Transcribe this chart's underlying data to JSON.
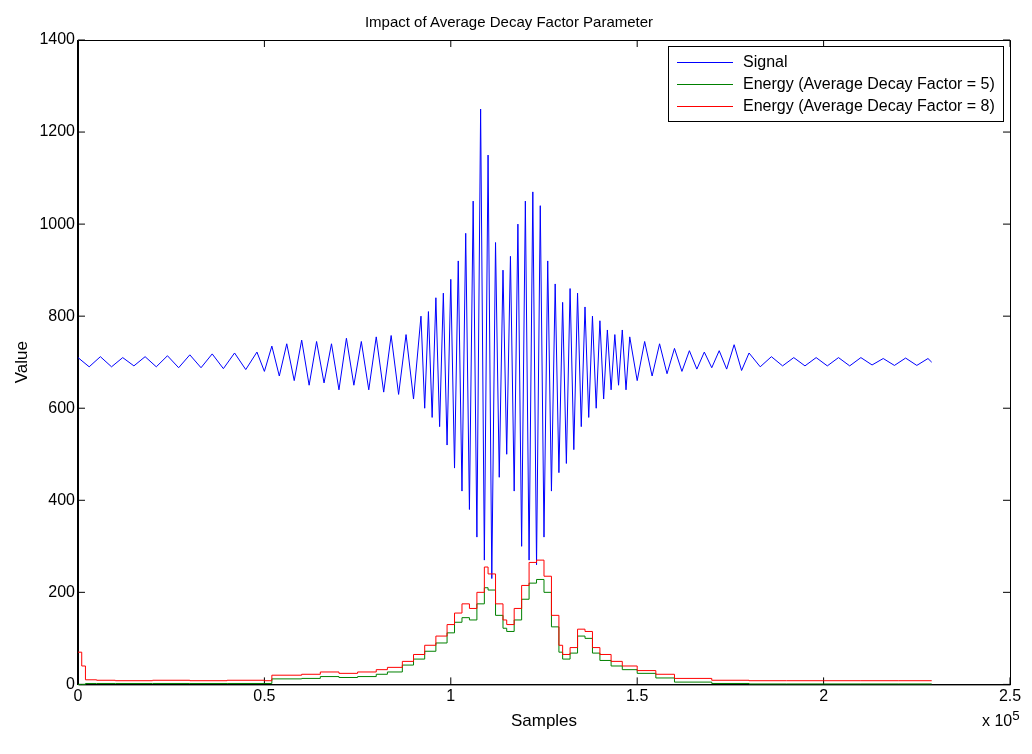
{
  "chart_data": {
    "type": "line",
    "title": "Impact of Average Decay Factor Parameter",
    "xlabel": "Samples",
    "ylabel": "Value",
    "annotations": [
      "x 10$^{5}$"
    ],
    "xlim": [
      0,
      2.5
    ],
    "xticks": [
      0,
      0.5,
      1,
      1.5,
      2,
      2.5
    ],
    "ylim": [
      0,
      1400
    ],
    "yticks": [
      0,
      200,
      400,
      600,
      800,
      1000,
      1200,
      1400
    ],
    "grid": false,
    "legend": "top right",
    "marker": "none",
    "line_style": "solid",
    "series": [
      {
        "name": "Signal",
        "type": "line",
        "color": "#0000ff",
        "x": [
          0,
          0.03,
          0.06,
          0.09,
          0.12,
          0.15,
          0.18,
          0.21,
          0.24,
          0.27,
          0.3,
          0.33,
          0.36,
          0.39,
          0.42,
          0.45,
          0.48,
          0.5,
          0.52,
          0.54,
          0.56,
          0.58,
          0.6,
          0.62,
          0.64,
          0.66,
          0.68,
          0.7,
          0.72,
          0.74,
          0.76,
          0.78,
          0.8,
          0.82,
          0.84,
          0.86,
          0.88,
          0.9,
          0.92,
          0.93,
          0.94,
          0.95,
          0.96,
          0.97,
          0.98,
          0.99,
          1,
          1.01,
          1.02,
          1.03,
          1.04,
          1.05,
          1.06,
          1.07,
          1.08,
          1.09,
          1.1,
          1.11,
          1.12,
          1.13,
          1.14,
          1.15,
          1.16,
          1.17,
          1.18,
          1.19,
          1.2,
          1.21,
          1.22,
          1.23,
          1.24,
          1.25,
          1.26,
          1.27,
          1.28,
          1.29,
          1.3,
          1.31,
          1.32,
          1.33,
          1.34,
          1.35,
          1.36,
          1.37,
          1.38,
          1.39,
          1.4,
          1.41,
          1.42,
          1.43,
          1.44,
          1.45,
          1.46,
          1.47,
          1.48,
          1.5,
          1.52,
          1.54,
          1.56,
          1.58,
          1.6,
          1.62,
          1.64,
          1.66,
          1.68,
          1.7,
          1.72,
          1.74,
          1.76,
          1.78,
          1.8,
          1.83,
          1.86,
          1.89,
          1.92,
          1.95,
          1.98,
          2.01,
          2.04,
          2.07,
          2.1,
          2.13,
          2.16,
          2.19,
          2.22,
          2.25,
          2.28,
          2.29
        ],
        "values": [
          710,
          690,
          712,
          690,
          710,
          692,
          712,
          690,
          714,
          688,
          716,
          688,
          718,
          686,
          720,
          684,
          722,
          680,
          735,
          670,
          740,
          660,
          748,
          650,
          745,
          655,
          740,
          640,
          752,
          650,
          745,
          640,
          755,
          635,
          758,
          630,
          760,
          620,
          800,
          600,
          810,
          580,
          840,
          560,
          850,
          520,
          880,
          470,
          920,
          420,
          980,
          380,
          1050,
          320,
          1250,
          270,
          1150,
          230,
          960,
          450,
          900,
          500,
          930,
          420,
          1000,
          300,
          1050,
          270,
          1070,
          260,
          1040,
          320,
          920,
          420,
          870,
          460,
          830,
          480,
          860,
          510,
          850,
          560,
          820,
          580,
          800,
          600,
          790,
          620,
          770,
          640,
          760,
          650,
          770,
          640,
          755,
          660,
          745,
          670,
          740,
          675,
          730,
          680,
          725,
          685,
          722,
          688,
          725,
          685,
          738,
          682,
          720,
          690,
          712,
          692,
          710,
          692,
          710,
          692,
          710,
          692,
          710,
          694,
          708,
          693,
          709,
          693,
          708,
          700
        ]
      },
      {
        "name": "Energy (Average Decay Factor = 5)",
        "type": "step",
        "color": "#008000",
        "x": [
          0,
          0.01,
          0.02,
          0.05,
          0.1,
          0.2,
          0.3,
          0.4,
          0.5,
          0.52,
          0.6,
          0.65,
          0.7,
          0.75,
          0.8,
          0.83,
          0.87,
          0.9,
          0.93,
          0.96,
          0.99,
          1.01,
          1.03,
          1.05,
          1.07,
          1.09,
          1.1,
          1.12,
          1.14,
          1.15,
          1.17,
          1.19,
          1.21,
          1.23,
          1.25,
          1.27,
          1.29,
          1.3,
          1.32,
          1.34,
          1.36,
          1.38,
          1.4,
          1.43,
          1.46,
          1.5,
          1.55,
          1.6,
          1.7,
          1.8,
          1.9,
          2,
          2.1,
          2.2,
          2.29
        ],
        "values": [
          0,
          0,
          2,
          2,
          2,
          2,
          2,
          2,
          2,
          12,
          13,
          17,
          15,
          17,
          22,
          27,
          42,
          55,
          72,
          90,
          112,
          135,
          145,
          140,
          175,
          210,
          205,
          150,
          122,
          115,
          140,
          185,
          220,
          228,
          200,
          125,
          70,
          55,
          68,
          105,
          100,
          68,
          52,
          40,
          32,
          24,
          14,
          5,
          2,
          1,
          1,
          1,
          1,
          1,
          1
        ]
      },
      {
        "name": "Energy (Average Decay Factor = 8)",
        "type": "step",
        "color": "#ff0000",
        "x": [
          0,
          0.01,
          0.02,
          0.05,
          0.1,
          0.2,
          0.3,
          0.4,
          0.5,
          0.52,
          0.6,
          0.65,
          0.7,
          0.75,
          0.8,
          0.83,
          0.87,
          0.9,
          0.93,
          0.96,
          0.99,
          1.01,
          1.03,
          1.05,
          1.07,
          1.09,
          1.1,
          1.12,
          1.14,
          1.15,
          1.17,
          1.19,
          1.21,
          1.23,
          1.25,
          1.27,
          1.29,
          1.3,
          1.32,
          1.34,
          1.36,
          1.38,
          1.4,
          1.43,
          1.46,
          1.5,
          1.55,
          1.6,
          1.7,
          1.8,
          1.9,
          2,
          2.1,
          2.2,
          2.29
        ],
        "values": [
          70,
          40,
          10,
          9,
          8,
          9,
          8,
          9,
          8,
          20,
          22,
          27,
          24,
          27,
          32,
          37,
          50,
          65,
          85,
          105,
          130,
          155,
          175,
          165,
          200,
          255,
          240,
          175,
          140,
          130,
          165,
          215,
          265,
          270,
          235,
          150,
          85,
          65,
          80,
          120,
          115,
          80,
          65,
          50,
          40,
          30,
          22,
          13,
          9,
          8,
          8,
          8,
          8,
          8,
          8
        ]
      }
    ]
  }
}
